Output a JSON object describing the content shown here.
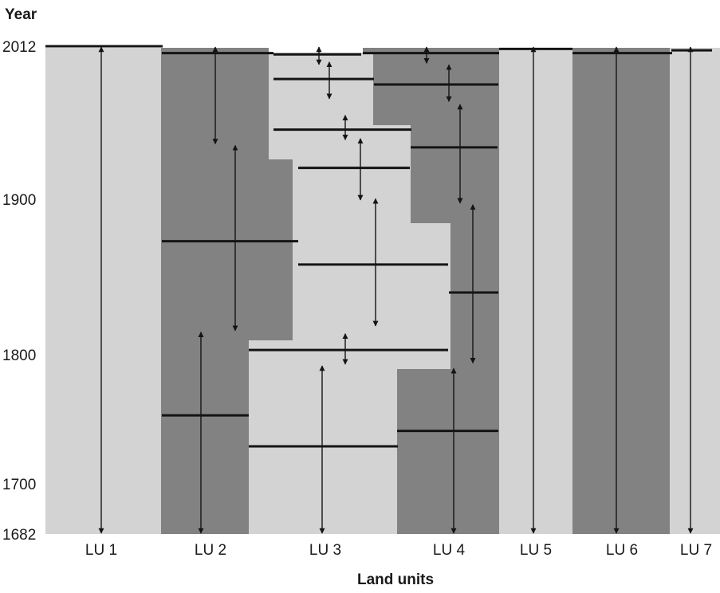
{
  "chart_data": {
    "type": "diagram",
    "y_axis_title": "Year",
    "x_axis_title": "Land units",
    "year_range": [
      1682,
      2012
    ],
    "year_ticks": [
      "2012",
      "1900",
      "1800",
      "1700",
      "1682"
    ],
    "colors": {
      "light": "#d3d3d3",
      "dark": "#828282",
      "line": "#141414",
      "background": "#ffffff"
    },
    "land_units": [
      {
        "label": "LU 1"
      },
      {
        "label": "LU 2"
      },
      {
        "label": "LU 3"
      },
      {
        "label": "LU 4"
      },
      {
        "label": "LU 5"
      },
      {
        "label": "LU 6"
      },
      {
        "label": "LU 7"
      }
    ],
    "shaded_regions": [
      {
        "unit": "LU 1",
        "tone": "light",
        "from_year": 1682,
        "to_year": 2012
      },
      {
        "unit": "LU 2",
        "tone": "dark",
        "from_year": 1682,
        "to_year": 1800
      },
      {
        "unit": "LU 2",
        "tone": "dark",
        "from_year": 1800,
        "to_year": 2012
      },
      {
        "unit": "LU 3",
        "tone": "light",
        "from_year": 1682,
        "to_year": 2012
      },
      {
        "unit": "LU 4",
        "tone": "dark",
        "from_year": 1682,
        "to_year": 2012
      },
      {
        "unit": "LU 5",
        "tone": "light",
        "from_year": 1682,
        "to_year": 2012
      },
      {
        "unit": "LU 6",
        "tone": "dark",
        "from_year": 1682,
        "to_year": 2012
      },
      {
        "unit": "LU 7",
        "tone": "light",
        "from_year": 1682,
        "to_year": 2012
      }
    ],
    "land_unit_boundaries": [
      {
        "unit": "LU 1",
        "year": 2012
      },
      {
        "unit": "LU 2",
        "year": 2007
      },
      {
        "unit": "LU 2",
        "year": 1873
      },
      {
        "unit": "LU 2",
        "year": 1753
      },
      {
        "unit": "LU 3",
        "year": 2006
      },
      {
        "unit": "LU 3",
        "year": 1988
      },
      {
        "unit": "LU 3",
        "year": 1951
      },
      {
        "unit": "LU 3",
        "year": 1923
      },
      {
        "unit": "LU 3",
        "year": 1858
      },
      {
        "unit": "LU 3",
        "year": 1803
      },
      {
        "unit": "LU 3",
        "year": 1729
      },
      {
        "unit": "LU 4",
        "year": 2007
      },
      {
        "unit": "LU 4",
        "year": 1984
      },
      {
        "unit": "LU 4",
        "year": 1938
      },
      {
        "unit": "LU 4",
        "year": 1840
      },
      {
        "unit": "LU 4",
        "year": 1741
      },
      {
        "unit": "LU 5",
        "year": 2010
      },
      {
        "unit": "LU 6",
        "year": 2007
      },
      {
        "unit": "LU 7",
        "year": 2009
      }
    ],
    "time_spans": [
      {
        "unit": "LU 1",
        "from_year": 2012,
        "to_year": 1682
      },
      {
        "unit": "LU 2",
        "from_year": 2012,
        "to_year": 1940
      },
      {
        "unit": "LU 2",
        "from_year": 1940,
        "to_year": 1815
      },
      {
        "unit": "LU 2",
        "from_year": 1815,
        "to_year": 1682
      },
      {
        "unit": "LU 3",
        "from_year": 2012,
        "to_year": 1998
      },
      {
        "unit": "LU 3",
        "from_year": 2001,
        "to_year": 1973
      },
      {
        "unit": "LU 3",
        "from_year": 1962,
        "to_year": 1943
      },
      {
        "unit": "LU 3",
        "from_year": 1945,
        "to_year": 1899
      },
      {
        "unit": "LU 3",
        "from_year": 1901,
        "to_year": 1818
      },
      {
        "unit": "LU 3",
        "from_year": 1814,
        "to_year": 1792
      },
      {
        "unit": "LU 3",
        "from_year": 1792,
        "to_year": 1682
      },
      {
        "unit": "LU 4",
        "from_year": 2012,
        "to_year": 1999
      },
      {
        "unit": "LU 4",
        "from_year": 1999,
        "to_year": 1971
      },
      {
        "unit": "LU 4",
        "from_year": 1970,
        "to_year": 1897
      },
      {
        "unit": "LU 4",
        "from_year": 1897,
        "to_year": 1793
      },
      {
        "unit": "LU 4",
        "from_year": 1790,
        "to_year": 1682
      },
      {
        "unit": "LU 5",
        "from_year": 2012,
        "to_year": 1682
      },
      {
        "unit": "LU 6",
        "from_year": 2012,
        "to_year": 1682
      },
      {
        "unit": "LU 7",
        "from_year": 2012,
        "to_year": 1682
      }
    ]
  }
}
